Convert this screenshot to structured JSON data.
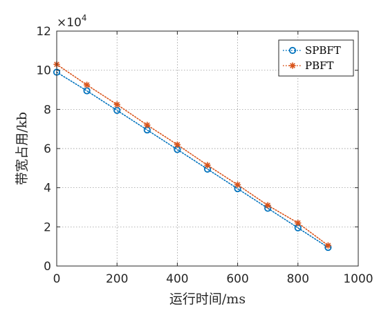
{
  "chart_data": {
    "type": "line",
    "title": "",
    "xlabel": "运行时间/ms",
    "ylabel": "带宽占用/kb",
    "xlim": [
      0,
      1000
    ],
    "ylim": [
      0,
      120000
    ],
    "x_ticks": [
      0,
      200,
      400,
      600,
      800,
      1000
    ],
    "x_tick_labels": [
      "0",
      "200",
      "400",
      "600",
      "800",
      "1000"
    ],
    "y_ticks": [
      0,
      20000,
      40000,
      60000,
      80000,
      100000,
      120000
    ],
    "y_tick_labels": [
      "0",
      "2",
      "4",
      "6",
      "8",
      "10",
      "12"
    ],
    "y_exponent_label": {
      "base": "×10",
      "power": "4"
    },
    "grid": true,
    "legend_position": "top-right",
    "x": [
      0,
      100,
      200,
      300,
      400,
      500,
      600,
      700,
      800,
      900
    ],
    "series": [
      {
        "name": "SPBFT",
        "color": "#0072BD",
        "marker": "circle",
        "line_style": "dotted",
        "values": [
          99000,
          89500,
          79500,
          69500,
          59500,
          49500,
          39500,
          29500,
          19500,
          9500
        ]
      },
      {
        "name": "PBFT",
        "color": "#D95319",
        "marker": "asterisk",
        "line_style": "dotted",
        "values": [
          103000,
          92500,
          82500,
          72000,
          62000,
          51500,
          41500,
          31000,
          22000,
          10500
        ]
      }
    ]
  }
}
